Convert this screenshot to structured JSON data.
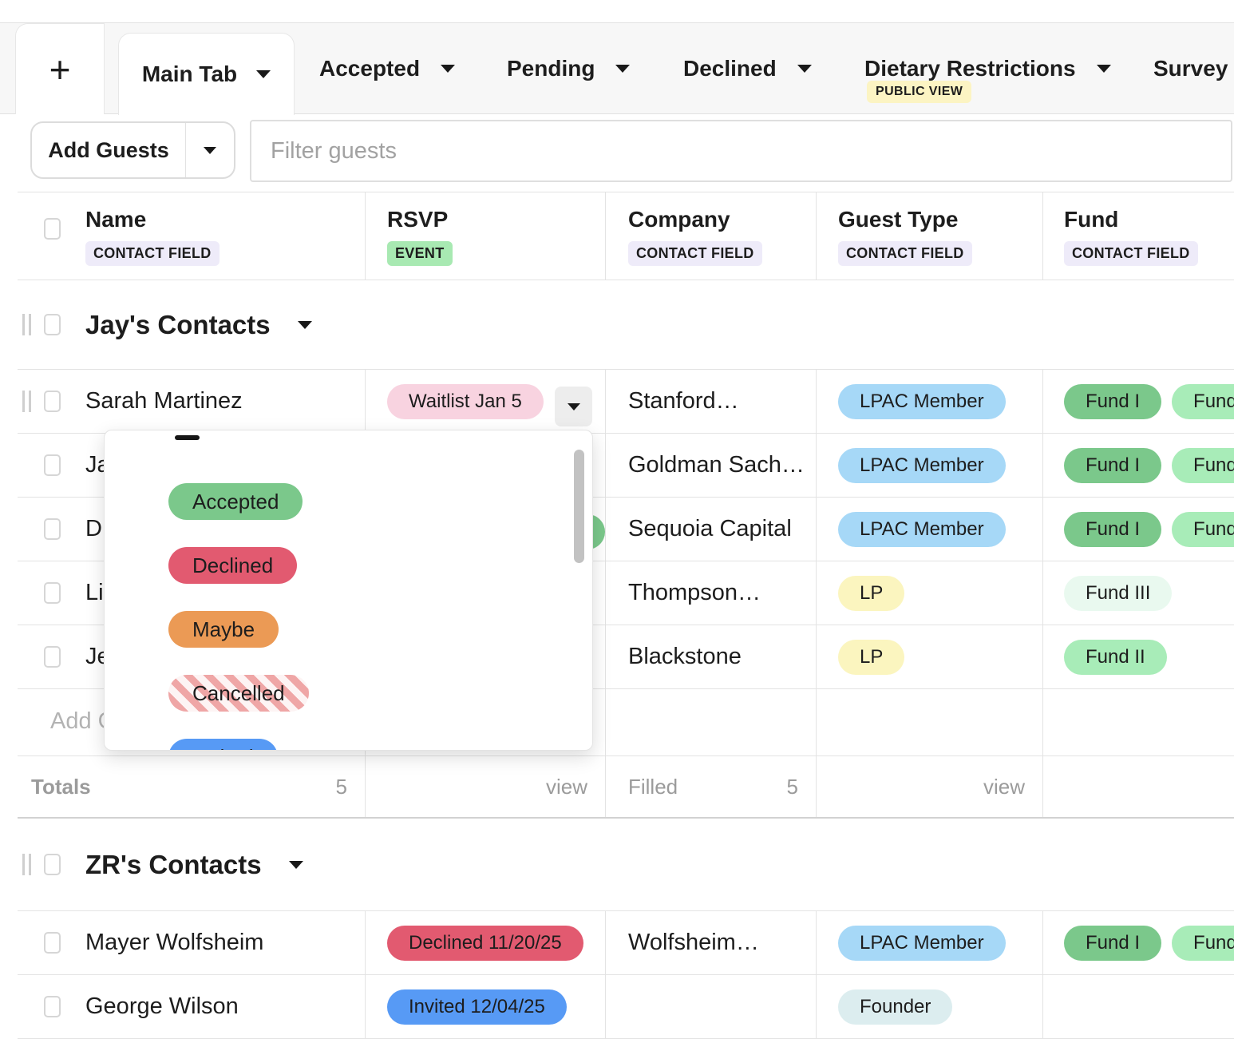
{
  "tabbar": {
    "add_tab_icon": "+",
    "tabs": [
      {
        "label": "Main Tab",
        "active": true
      },
      {
        "label": "Accepted",
        "active": false
      },
      {
        "label": "Pending",
        "active": false
      },
      {
        "label": "Declined",
        "active": false
      },
      {
        "label": "Dietary Restrictions",
        "active": false,
        "badge": "PUBLIC VIEW"
      },
      {
        "label": "Survey",
        "active": false
      }
    ]
  },
  "toolbar": {
    "add_guests_label": "Add Guests",
    "filter_placeholder": "Filter guests"
  },
  "table": {
    "columns": [
      {
        "title": "Name",
        "tag": "CONTACT FIELD"
      },
      {
        "title": "RSVP",
        "tag": "EVENT"
      },
      {
        "title": "Company",
        "tag": "CONTACT FIELD"
      },
      {
        "title": "Guest Type",
        "tag": "CONTACT FIELD"
      },
      {
        "title": "Fund",
        "tag": "CONTACT FIELD"
      }
    ],
    "groups": [
      {
        "name": "Jay's Contacts",
        "rows": [
          {
            "name": "Sarah Martinez",
            "rsvp": {
              "label": "Waitlist Jan 5",
              "color": "#F8D3E0"
            },
            "company": "Stanford…",
            "guest_type": {
              "label": "LPAC Member",
              "color": "#A6D8F7"
            },
            "funds": [
              {
                "label": "Fund I",
                "color": "#7BC88B"
              },
              {
                "label": "Fund II",
                "color": "#A8ECB8"
              }
            ]
          },
          {
            "name": "Ja",
            "company": "Goldman Sach…",
            "guest_type": {
              "label": "LPAC Member",
              "color": "#A6D8F7"
            },
            "funds": [
              {
                "label": "Fund I",
                "color": "#7BC88B"
              },
              {
                "label": "Fund II",
                "color": "#A8ECB8"
              }
            ]
          },
          {
            "name": "D",
            "rsvp_peek_color": "#7BC88B",
            "company": "Sequoia Capital",
            "guest_type": {
              "label": "LPAC Member",
              "color": "#A6D8F7"
            },
            "funds": [
              {
                "label": "Fund I",
                "color": "#7BC88B"
              },
              {
                "label": "Fund II",
                "color": "#A8ECB8"
              }
            ]
          },
          {
            "name": "Li",
            "company": "Thompson…",
            "guest_type": {
              "label": "LP",
              "color": "#FBF5BF"
            },
            "funds": [
              {
                "label": "Fund III",
                "color": "#E9F9EF"
              }
            ]
          },
          {
            "name": "Je",
            "company": "Blackstone",
            "guest_type": {
              "label": "LP",
              "color": "#FBF5BF"
            },
            "funds": [
              {
                "label": "Fund II",
                "color": "#A8ECB8"
              }
            ]
          }
        ],
        "add_row_label": "Add G",
        "totals": {
          "label": "Totals",
          "name_total": "5",
          "rsvp_action": "view",
          "company_label": "Filled",
          "company_total": "5",
          "guest_type_action": "view"
        }
      },
      {
        "name": "ZR's Contacts",
        "rows": [
          {
            "name": "Mayer Wolfsheim",
            "rsvp": {
              "label": "Declined 11/20/25",
              "color": "#E25A70"
            },
            "company": "Wolfsheim…",
            "guest_type": {
              "label": "LPAC Member",
              "color": "#A6D8F7"
            },
            "funds": [
              {
                "label": "Fund I",
                "color": "#7BC88B"
              },
              {
                "label": "Fund II",
                "color": "#A8ECB8"
              }
            ]
          },
          {
            "name": "George Wilson",
            "rsvp": {
              "label": "Invited 12/04/25",
              "color": "#579AF5"
            },
            "company": "",
            "guest_type": {
              "label": "Founder",
              "color": "#DCEDEF"
            },
            "funds": []
          }
        ]
      }
    ]
  },
  "rsvp_dropdown": {
    "options": [
      {
        "label": "",
        "style": "clear-dash"
      },
      {
        "label": "Accepted",
        "color": "#7BC88B"
      },
      {
        "label": "Declined",
        "color": "#E25A70"
      },
      {
        "label": "Maybe",
        "color": "#EB9A55"
      },
      {
        "label": "Cancelled",
        "color": "striped #EFA6A6 on #FDF4F4"
      },
      {
        "label": "Invited",
        "color": "#579AF5"
      }
    ]
  },
  "colors": {
    "tab_bar_bg": "#F7F7F7",
    "border": "#E3E3E3",
    "badge_contact_field": "#EEEBF9",
    "badge_event": "#A8E9B2",
    "badge_public_view": "#FCF4C3",
    "pill_waitlist": "#F8D3E0",
    "pill_lpac_member": "#A6D8F7",
    "pill_lp": "#FBF5BF",
    "pill_founder": "#DCEDEF",
    "fund_1": "#7BC88B",
    "fund_2": "#A8ECB8",
    "fund_3": "#E9F9EF",
    "dropdown_button_bg": "#EDEDED"
  }
}
